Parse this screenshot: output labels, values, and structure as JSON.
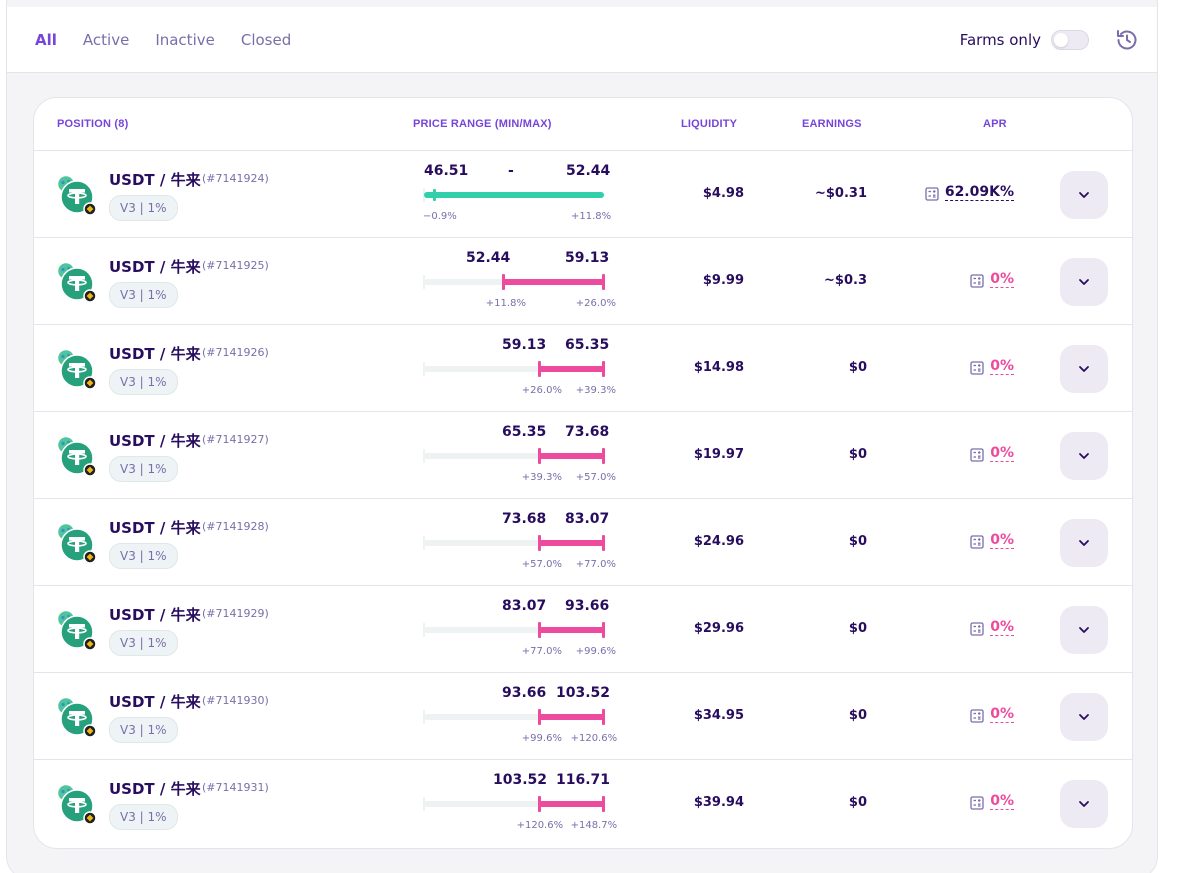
{
  "filters": {
    "tabs": [
      {
        "label": "All",
        "active": true
      },
      {
        "label": "Active",
        "active": false
      },
      {
        "label": "Inactive",
        "active": false
      },
      {
        "label": "Closed",
        "active": false
      }
    ],
    "farms_only_label": "Farms only",
    "farms_only_enabled": false
  },
  "table": {
    "headers": {
      "position": "POSITION (8)",
      "price_range": "PRICE RANGE (MIN/MAX)",
      "liquidity": "LIQUIDITY",
      "earnings": "EARNINGS",
      "apr": "APR"
    },
    "rows": [
      {
        "pair": "USDT / 牛来",
        "id": "(#7141924)",
        "badge": "V3 | 1%",
        "min": "46.51",
        "dash": "-",
        "max": "52.44",
        "min_pct": "−0.9%",
        "max_pct": "+11.8%",
        "in_range": true,
        "liquidity": "$4.98",
        "earnings": "~$0.31",
        "apr": "62.09K%"
      },
      {
        "pair": "USDT / 牛来",
        "id": "(#7141925)",
        "badge": "V3 | 1%",
        "min": "52.44",
        "max": "59.13",
        "min_pct": "+11.8%",
        "max_pct": "+26.0%",
        "in_range": false,
        "liquidity": "$9.99",
        "earnings": "~$0.3",
        "apr": "0%"
      },
      {
        "pair": "USDT / 牛来",
        "id": "(#7141926)",
        "badge": "V3 | 1%",
        "min": "59.13",
        "max": "65.35",
        "min_pct": "+26.0%",
        "max_pct": "+39.3%",
        "in_range": false,
        "liquidity": "$14.98",
        "earnings": "$0",
        "apr": "0%"
      },
      {
        "pair": "USDT / 牛来",
        "id": "(#7141927)",
        "badge": "V3 | 1%",
        "min": "65.35",
        "max": "73.68",
        "min_pct": "+39.3%",
        "max_pct": "+57.0%",
        "in_range": false,
        "liquidity": "$19.97",
        "earnings": "$0",
        "apr": "0%"
      },
      {
        "pair": "USDT / 牛来",
        "id": "(#7141928)",
        "badge": "V3 | 1%",
        "min": "73.68",
        "max": "83.07",
        "min_pct": "+57.0%",
        "max_pct": "+77.0%",
        "in_range": false,
        "liquidity": "$24.96",
        "earnings": "$0",
        "apr": "0%"
      },
      {
        "pair": "USDT / 牛来",
        "id": "(#7141929)",
        "badge": "V3 | 1%",
        "min": "83.07",
        "max": "93.66",
        "min_pct": "+77.0%",
        "max_pct": "+99.6%",
        "in_range": false,
        "liquidity": "$29.96",
        "earnings": "$0",
        "apr": "0%"
      },
      {
        "pair": "USDT / 牛来",
        "id": "(#7141930)",
        "badge": "V3 | 1%",
        "min": "93.66",
        "max": "103.52",
        "min_pct": "+99.6%",
        "max_pct": "+120.6%",
        "in_range": false,
        "liquidity": "$34.95",
        "earnings": "$0",
        "apr": "0%"
      },
      {
        "pair": "USDT / 牛来",
        "id": "(#7141931)",
        "badge": "V3 | 1%",
        "min": "103.52",
        "max": "116.71",
        "min_pct": "+120.6%",
        "max_pct": "+148.7%",
        "in_range": false,
        "liquidity": "$39.94",
        "earnings": "$0",
        "apr": "0%"
      }
    ]
  },
  "icons": {
    "history": "history-icon",
    "calculator": "calculator-icon",
    "expand": "chevron-down-icon",
    "token": "usdt-token-icon"
  },
  "colors": {
    "accent": "#7645d9",
    "in_range": "#31d0aa",
    "out_of_range": "#ed4b9e",
    "text": "#280d5f"
  }
}
